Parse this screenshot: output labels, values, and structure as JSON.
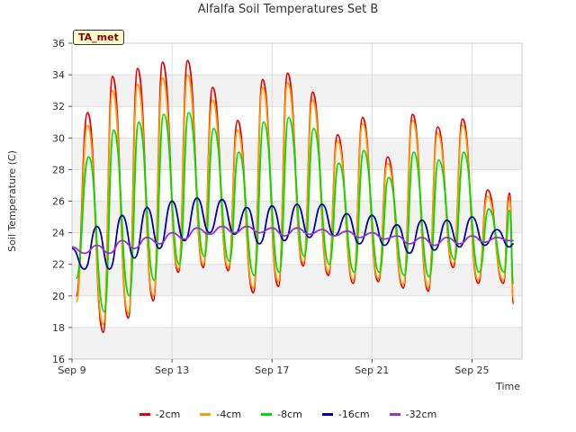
{
  "chart_data": {
    "type": "line",
    "title": "Alfalfa Soil Temperatures Set B",
    "xlabel": "Time",
    "ylabel": "Soil Temperature (C)",
    "site_label": "TA_met",
    "ylim": [
      16,
      36
    ],
    "yticks": [
      16,
      18,
      20,
      22,
      24,
      26,
      28,
      30,
      32,
      34,
      36
    ],
    "xlim": [
      "2024-09-09",
      "2024-09-27"
    ],
    "xticks": [
      {
        "label": "Sep 9",
        "date": "2024-09-09"
      },
      {
        "label": "Sep 13",
        "date": "2024-09-13"
      },
      {
        "label": "Sep 17",
        "date": "2024-09-17"
      },
      {
        "label": "Sep 21",
        "date": "2024-09-21"
      },
      {
        "label": "Sep 25",
        "date": "2024-09-25"
      }
    ],
    "grid": true,
    "legend_position": "bottom",
    "series": [
      {
        "name": "-2cm",
        "color": "#e60000",
        "x": [
          "2024-09-09 04:00",
          "2024-09-09 15:00",
          "2024-09-10 06:00",
          "2024-09-10 15:00",
          "2024-09-11 06:00",
          "2024-09-11 15:00",
          "2024-09-12 06:00",
          "2024-09-12 15:00",
          "2024-09-13 06:00",
          "2024-09-13 15:00",
          "2024-09-14 06:00",
          "2024-09-14 15:00",
          "2024-09-15 06:00",
          "2024-09-15 15:00",
          "2024-09-16 06:00",
          "2024-09-16 15:00",
          "2024-09-17 06:00",
          "2024-09-17 15:00",
          "2024-09-18 06:00",
          "2024-09-18 15:00",
          "2024-09-19 06:00",
          "2024-09-19 15:00",
          "2024-09-20 06:00",
          "2024-09-20 15:00",
          "2024-09-21 06:00",
          "2024-09-21 15:00",
          "2024-09-22 06:00",
          "2024-09-22 15:00",
          "2024-09-23 06:00",
          "2024-09-23 15:00",
          "2024-09-24 06:00",
          "2024-09-24 15:00",
          "2024-09-25 06:00",
          "2024-09-25 15:00",
          "2024-09-26 06:00",
          "2024-09-26 12:00",
          "2024-09-26 16:00"
        ],
        "y": [
          20.0,
          31.6,
          17.7,
          33.9,
          18.6,
          34.4,
          19.7,
          34.8,
          21.5,
          34.9,
          21.8,
          33.2,
          21.6,
          31.1,
          20.2,
          33.7,
          20.6,
          34.1,
          21.9,
          32.9,
          21.3,
          30.2,
          20.8,
          31.3,
          20.9,
          28.8,
          20.5,
          31.5,
          20.3,
          30.7,
          21.8,
          31.2,
          20.8,
          26.7,
          20.8,
          26.5,
          19.5
        ]
      },
      {
        "name": "-4cm",
        "color": "#ff9900",
        "x": [
          "2024-09-09 04:00",
          "2024-09-09 15:00",
          "2024-09-10 06:00",
          "2024-09-10 15:00",
          "2024-09-11 06:00",
          "2024-09-11 15:00",
          "2024-09-12 06:00",
          "2024-09-12 15:00",
          "2024-09-13 06:00",
          "2024-09-13 15:00",
          "2024-09-14 06:00",
          "2024-09-14 15:00",
          "2024-09-15 06:00",
          "2024-09-15 15:00",
          "2024-09-16 06:00",
          "2024-09-16 15:00",
          "2024-09-17 06:00",
          "2024-09-17 15:00",
          "2024-09-18 06:00",
          "2024-09-18 15:00",
          "2024-09-19 06:00",
          "2024-09-19 15:00",
          "2024-09-20 06:00",
          "2024-09-20 15:00",
          "2024-09-21 06:00",
          "2024-09-21 15:00",
          "2024-09-22 06:00",
          "2024-09-22 15:00",
          "2024-09-23 06:00",
          "2024-09-23 15:00",
          "2024-09-24 06:00",
          "2024-09-24 15:00",
          "2024-09-25 06:00",
          "2024-09-25 15:00",
          "2024-09-26 06:00",
          "2024-09-26 12:00",
          "2024-09-26 16:00"
        ],
        "y": [
          19.6,
          30.8,
          18.2,
          33.0,
          18.9,
          33.4,
          20.0,
          33.8,
          21.7,
          34.0,
          22.0,
          32.4,
          21.8,
          30.5,
          20.5,
          33.2,
          20.9,
          33.5,
          22.1,
          32.4,
          21.5,
          29.8,
          21.0,
          30.9,
          21.1,
          28.4,
          20.7,
          31.1,
          20.5,
          30.3,
          22.0,
          30.8,
          21.0,
          26.3,
          21.0,
          26.1,
          19.8
        ]
      },
      {
        "name": "-8cm",
        "color": "#00dd00",
        "x": [
          "2024-09-09 04:00",
          "2024-09-09 16:00",
          "2024-09-10 07:00",
          "2024-09-10 16:00",
          "2024-09-11 07:00",
          "2024-09-11 16:00",
          "2024-09-12 07:00",
          "2024-09-12 16:00",
          "2024-09-13 07:00",
          "2024-09-13 16:00",
          "2024-09-14 07:00",
          "2024-09-14 16:00",
          "2024-09-15 07:00",
          "2024-09-15 16:00",
          "2024-09-16 07:00",
          "2024-09-16 16:00",
          "2024-09-17 07:00",
          "2024-09-17 16:00",
          "2024-09-18 07:00",
          "2024-09-18 16:00",
          "2024-09-19 07:00",
          "2024-09-19 16:00",
          "2024-09-20 07:00",
          "2024-09-20 16:00",
          "2024-09-21 07:00",
          "2024-09-21 16:00",
          "2024-09-22 07:00",
          "2024-09-22 16:00",
          "2024-09-23 07:00",
          "2024-09-23 16:00",
          "2024-09-24 07:00",
          "2024-09-24 16:00",
          "2024-09-25 07:00",
          "2024-09-25 16:00",
          "2024-09-26 07:00",
          "2024-09-26 12:00",
          "2024-09-26 16:00"
        ],
        "y": [
          21.1,
          28.8,
          19.0,
          30.5,
          20.0,
          31.0,
          21.0,
          31.5,
          22.0,
          31.6,
          22.5,
          30.6,
          22.2,
          29.1,
          21.3,
          31.0,
          21.5,
          31.3,
          22.5,
          30.6,
          22.0,
          28.4,
          21.5,
          29.2,
          21.5,
          27.5,
          21.3,
          29.1,
          21.2,
          28.6,
          22.3,
          29.1,
          21.5,
          25.5,
          21.5,
          25.4,
          20.8
        ]
      },
      {
        "name": "-16cm",
        "color": "#0000aa",
        "x": [
          "2024-09-09 00:00",
          "2024-09-09 12:00",
          "2024-09-10 00:00",
          "2024-09-10 12:00",
          "2024-09-11 00:00",
          "2024-09-11 12:00",
          "2024-09-12 00:00",
          "2024-09-12 12:00",
          "2024-09-13 00:00",
          "2024-09-13 12:00",
          "2024-09-14 00:00",
          "2024-09-14 12:00",
          "2024-09-15 00:00",
          "2024-09-15 12:00",
          "2024-09-16 00:00",
          "2024-09-16 12:00",
          "2024-09-17 00:00",
          "2024-09-17 12:00",
          "2024-09-18 00:00",
          "2024-09-18 12:00",
          "2024-09-19 00:00",
          "2024-09-19 12:00",
          "2024-09-20 00:00",
          "2024-09-20 12:00",
          "2024-09-21 00:00",
          "2024-09-21 12:00",
          "2024-09-22 00:00",
          "2024-09-22 12:00",
          "2024-09-23 00:00",
          "2024-09-23 12:00",
          "2024-09-24 00:00",
          "2024-09-24 12:00",
          "2024-09-25 00:00",
          "2024-09-25 12:00",
          "2024-09-26 00:00",
          "2024-09-26 12:00",
          "2024-09-26 16:00"
        ],
        "y": [
          23.0,
          21.7,
          24.4,
          21.7,
          25.1,
          22.4,
          25.6,
          23.0,
          26.0,
          23.5,
          26.2,
          24.0,
          26.1,
          23.9,
          25.6,
          23.3,
          25.7,
          23.5,
          25.8,
          23.7,
          25.8,
          23.8,
          25.2,
          23.3,
          25.1,
          23.2,
          24.5,
          22.7,
          24.8,
          22.9,
          24.8,
          23.1,
          25.0,
          23.2,
          24.2,
          23.1,
          23.3
        ]
      },
      {
        "name": "-32cm",
        "color": "#9933cc",
        "x": [
          "2024-09-09 00:00",
          "2024-09-09 12:00",
          "2024-09-10 00:00",
          "2024-09-10 12:00",
          "2024-09-11 00:00",
          "2024-09-11 12:00",
          "2024-09-12 00:00",
          "2024-09-12 12:00",
          "2024-09-13 00:00",
          "2024-09-13 12:00",
          "2024-09-14 00:00",
          "2024-09-14 12:00",
          "2024-09-15 00:00",
          "2024-09-15 12:00",
          "2024-09-16 00:00",
          "2024-09-16 12:00",
          "2024-09-17 00:00",
          "2024-09-17 12:00",
          "2024-09-18 00:00",
          "2024-09-18 12:00",
          "2024-09-19 00:00",
          "2024-09-19 12:00",
          "2024-09-20 00:00",
          "2024-09-20 12:00",
          "2024-09-21 00:00",
          "2024-09-21 12:00",
          "2024-09-22 00:00",
          "2024-09-22 12:00",
          "2024-09-23 00:00",
          "2024-09-23 12:00",
          "2024-09-24 00:00",
          "2024-09-24 12:00",
          "2024-09-25 00:00",
          "2024-09-25 12:00",
          "2024-09-26 00:00",
          "2024-09-26 12:00",
          "2024-09-26 16:00"
        ],
        "y": [
          23.1,
          22.7,
          23.2,
          22.7,
          23.5,
          23.0,
          23.7,
          23.3,
          24.0,
          23.6,
          24.3,
          23.9,
          24.4,
          24.0,
          24.4,
          24.0,
          24.3,
          23.8,
          24.3,
          23.9,
          24.2,
          23.8,
          24.1,
          23.7,
          24.0,
          23.6,
          23.8,
          23.3,
          23.7,
          23.2,
          23.7,
          23.3,
          23.8,
          23.4,
          23.7,
          23.5,
          23.5
        ]
      }
    ]
  }
}
